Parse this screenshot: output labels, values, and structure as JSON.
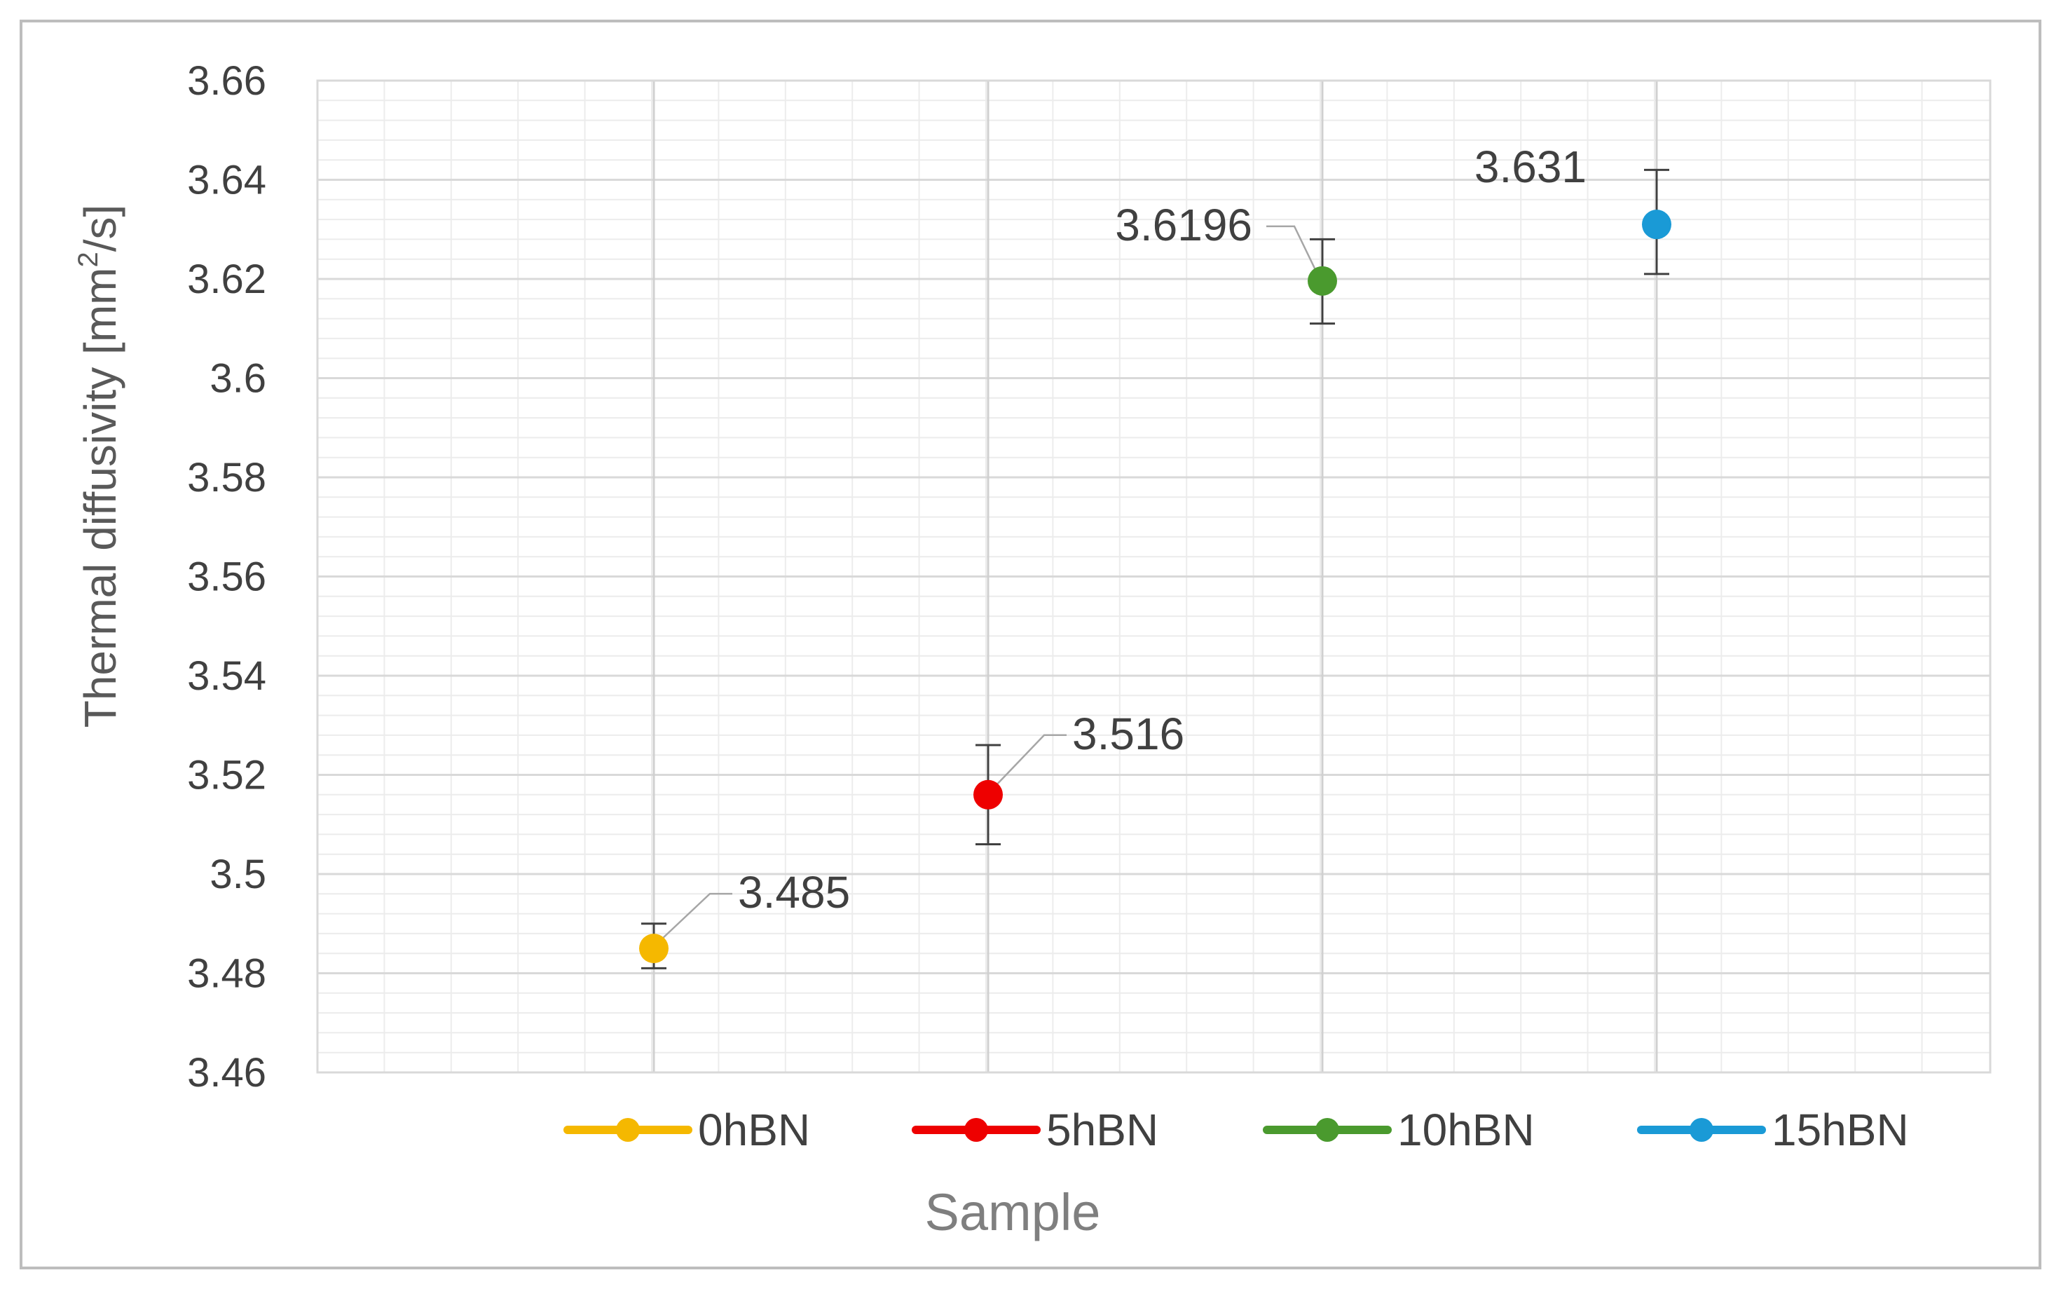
{
  "chart_data": {
    "type": "scatter",
    "xlabel": "Sample",
    "ylabel_main": "Thermal diffusivity [mm",
    "ylabel_sup": "2",
    "ylabel_end": "/s]",
    "ylim": [
      3.46,
      3.66
    ],
    "y_ticks": [
      "3.46",
      "3.48",
      "3.5",
      "3.52",
      "3.54",
      "3.56",
      "3.58",
      "3.6",
      "3.62",
      "3.64",
      "3.66"
    ],
    "grid": true,
    "legend_position": "bottom",
    "series": [
      {
        "name": "0hBN",
        "x": 1,
        "y": 3.485,
        "err_low": 3.481,
        "err_high": 3.49,
        "label": "3.485",
        "color": "#f5b800"
      },
      {
        "name": "5hBN",
        "x": 2,
        "y": 3.516,
        "err_low": 3.506,
        "err_high": 3.526,
        "label": "3.516",
        "color": "#ee0000"
      },
      {
        "name": "10hBN",
        "x": 3,
        "y": 3.6196,
        "err_low": 3.611,
        "err_high": 3.628,
        "label": "3.6196",
        "color": "#4a9a2e"
      },
      {
        "name": "15hBN",
        "x": 4,
        "y": 3.631,
        "err_low": 3.621,
        "err_high": 3.642,
        "label": "3.631",
        "color": "#1a9ad6"
      }
    ]
  }
}
